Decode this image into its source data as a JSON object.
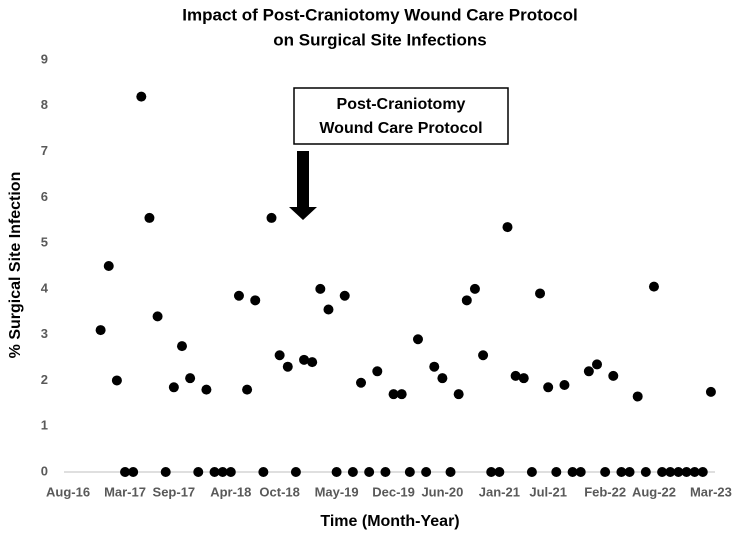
{
  "chart_data": {
    "type": "scatter",
    "title": [
      "Impact of Post-Craniotomy Wound Care Protocol",
      "on Surgical Site Infections"
    ],
    "x_label": "Time (Month-Year)",
    "y_label": "% Surgical Site Infection",
    "categories": [
      "Aug-16",
      null,
      null,
      null,
      null,
      null,
      null,
      "Mar-17",
      null,
      null,
      null,
      null,
      null,
      "Sep-17",
      null,
      null,
      null,
      null,
      null,
      null,
      "Apr-18",
      null,
      null,
      null,
      null,
      null,
      "Oct-18",
      null,
      null,
      null,
      null,
      null,
      null,
      "May-19",
      null,
      null,
      null,
      null,
      null,
      null,
      "Dec-19",
      null,
      null,
      null,
      null,
      null,
      "Jun-20",
      null,
      null,
      null,
      null,
      null,
      null,
      "Jan-21",
      null,
      null,
      null,
      null,
      null,
      "Jul-21",
      null,
      null,
      null,
      null,
      null,
      null,
      "Feb-22",
      null,
      null,
      null,
      null,
      null,
      "Aug-22",
      null,
      null,
      null,
      null,
      null,
      null,
      "Mar-23"
    ],
    "values": [
      null,
      null,
      null,
      null,
      3.1,
      4.5,
      2.0,
      0,
      0,
      8.2,
      5.55,
      3.4,
      0,
      1.85,
      2.75,
      2.05,
      0,
      1.8,
      0,
      0,
      0,
      3.85,
      1.8,
      3.75,
      0,
      5.55,
      2.55,
      2.3,
      0,
      2.45,
      2.4,
      4.0,
      3.55,
      0,
      3.85,
      0,
      1.95,
      0,
      2.2,
      0,
      1.7,
      1.7,
      0,
      2.9,
      0,
      2.3,
      2.05,
      0,
      1.7,
      3.75,
      4.0,
      2.55,
      0,
      0,
      5.35,
      2.1,
      2.05,
      0,
      3.9,
      1.85,
      0,
      1.9,
      0,
      0,
      2.2,
      2.35,
      0,
      2.1,
      0,
      0,
      1.65,
      0,
      4.05,
      0,
      0,
      0,
      0,
      0,
      0,
      1.75
    ],
    "color": "#000000",
    "ylim": [
      0,
      9
    ],
    "yticks": [
      0,
      1,
      2,
      3,
      4,
      5,
      6,
      7,
      8,
      9
    ],
    "grid": false,
    "annotation": {
      "text": [
        "Post-Craniotomy",
        "Wound Care Protocol"
      ]
    }
  }
}
